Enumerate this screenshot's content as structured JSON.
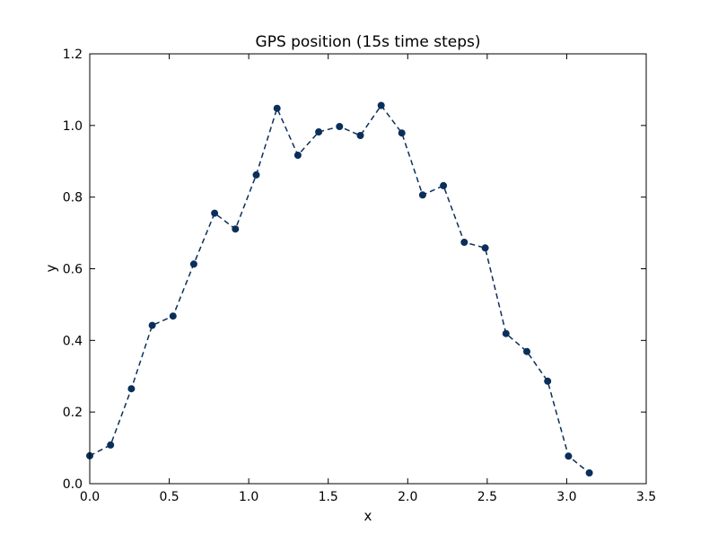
{
  "chart_data": {
    "type": "line",
    "title": "GPS position (15s time steps)",
    "xlabel": "x",
    "ylabel": "y",
    "xlim": [
      0.0,
      3.5
    ],
    "ylim": [
      0.0,
      1.2
    ],
    "x_ticks": [
      "0.0",
      "0.5",
      "1.0",
      "1.5",
      "2.0",
      "2.5",
      "3.0",
      "3.5"
    ],
    "y_ticks": [
      "0.0",
      "0.2",
      "0.4",
      "0.6",
      "0.8",
      "1.0",
      "1.2"
    ],
    "grid": false,
    "line_style": "dashed",
    "marker": "circle",
    "series_color": "#0b2f5a",
    "x": [
      0.0,
      0.131,
      0.262,
      0.393,
      0.524,
      0.654,
      0.785,
      0.916,
      1.047,
      1.178,
      1.309,
      1.44,
      1.571,
      1.702,
      1.833,
      1.963,
      2.094,
      2.225,
      2.356,
      2.487,
      2.618,
      2.749,
      2.88,
      3.011,
      3.142
    ],
    "y": [
      0.078,
      0.108,
      0.265,
      0.442,
      0.468,
      0.613,
      0.755,
      0.711,
      0.862,
      1.048,
      0.917,
      0.982,
      0.997,
      0.972,
      1.056,
      0.979,
      0.806,
      0.832,
      0.674,
      0.658,
      0.419,
      0.369,
      0.286,
      0.077,
      0.03
    ]
  }
}
